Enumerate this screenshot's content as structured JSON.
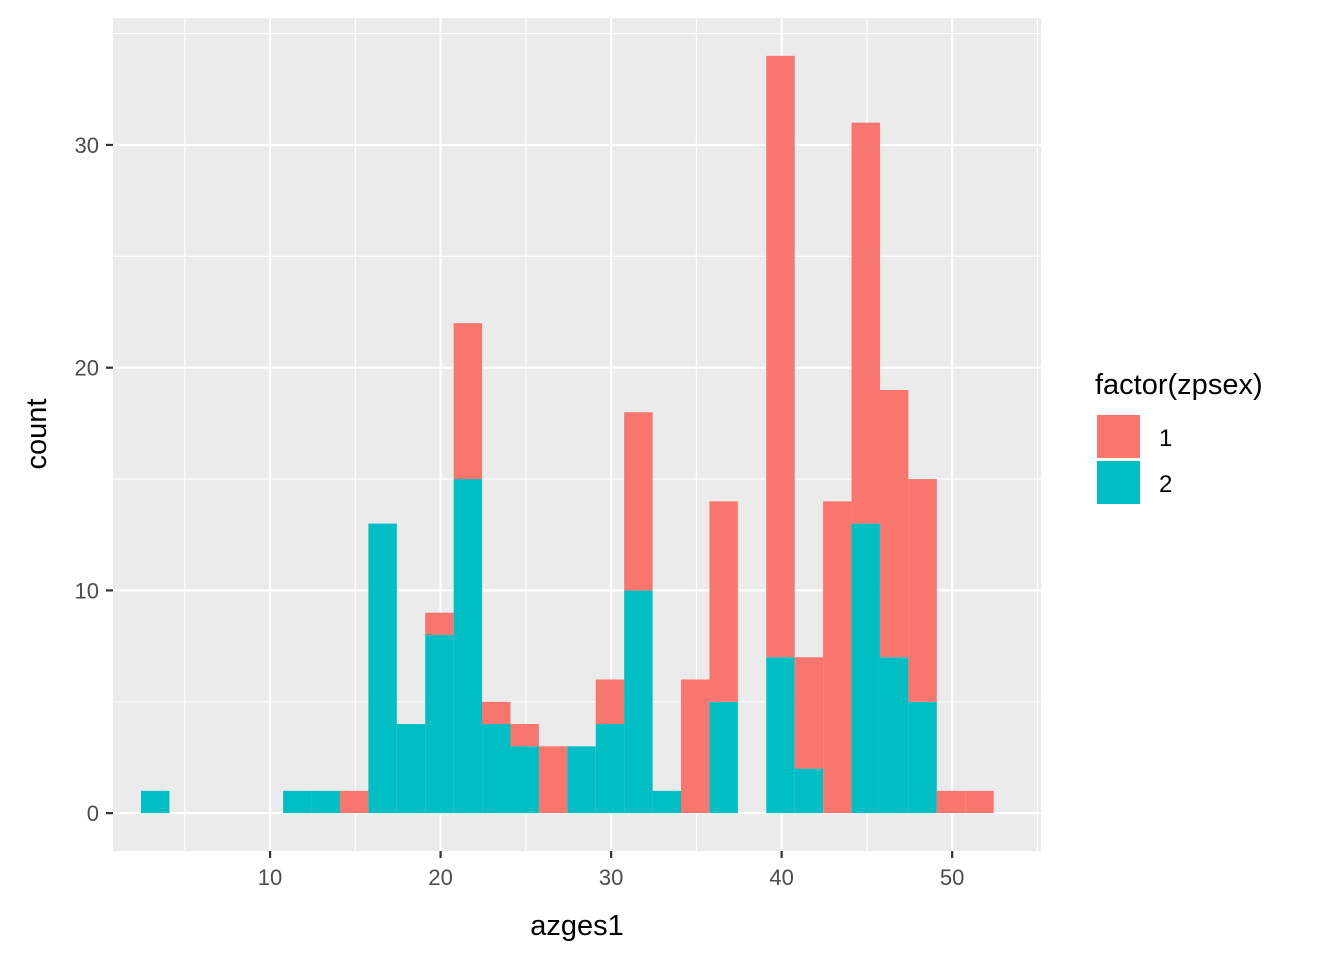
{
  "chart_data": {
    "type": "bar",
    "title": "",
    "xlabel": "azges1",
    "ylabel": "count",
    "xlim": [
      0.79,
      55.21
    ],
    "ylim": [
      -1.7,
      35.7
    ],
    "x_ticks": [
      10,
      20,
      30,
      40,
      50
    ],
    "y_ticks": [
      0,
      10,
      20,
      30
    ],
    "bin_width": 1.6667,
    "stacked": true,
    "grid": true,
    "legend_position": "right",
    "legend_title": "factor(zpsex)",
    "bins": [
      3.267,
      4.933,
      6.6,
      8.267,
      9.933,
      11.6,
      13.267,
      14.933,
      16.6,
      18.267,
      19.933,
      21.6,
      23.267,
      24.933,
      26.6,
      28.267,
      29.933,
      31.6,
      33.267,
      34.933,
      36.6,
      38.267,
      39.933,
      41.6,
      43.267,
      44.933,
      46.6,
      48.267,
      49.933,
      51.6
    ],
    "series": [
      {
        "name": "1",
        "color": "#F8766D",
        "values": [
          0,
          0,
          0,
          0,
          0,
          0,
          0,
          1,
          0,
          0,
          1,
          7,
          1,
          1,
          3,
          0,
          2,
          8,
          0,
          6,
          9,
          0,
          27,
          5,
          14,
          18,
          12,
          10,
          1,
          1
        ]
      },
      {
        "name": "2",
        "color": "#00BFC4",
        "values": [
          1,
          0,
          0,
          0,
          0,
          1,
          1,
          0,
          13,
          4,
          8,
          15,
          4,
          3,
          0,
          3,
          4,
          10,
          1,
          0,
          5,
          0,
          7,
          2,
          0,
          13,
          7,
          5,
          0,
          0
        ]
      }
    ]
  }
}
